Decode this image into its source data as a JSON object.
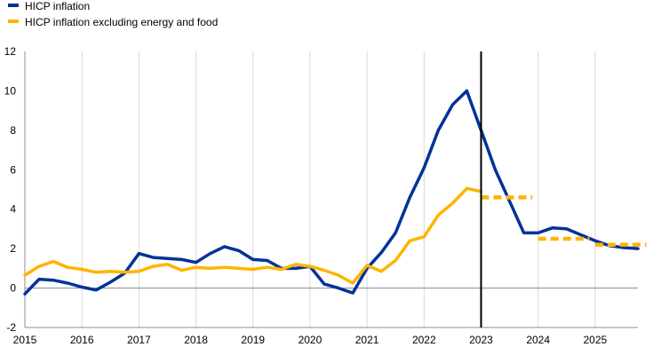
{
  "chart_data": {
    "type": "line",
    "title": "",
    "xlabel": "",
    "ylabel": "",
    "xlim": [
      2015,
      2025.75
    ],
    "ylim": [
      -2,
      12
    ],
    "x_ticks": [
      2015,
      2016,
      2017,
      2018,
      2019,
      2020,
      2021,
      2022,
      2023,
      2024,
      2025
    ],
    "y_ticks": [
      -2,
      0,
      2,
      4,
      6,
      8,
      10,
      12
    ],
    "grid": "vertical",
    "legend_position": "top-left",
    "vertical_marker_x": 2023,
    "series": [
      {
        "name": "HICP inflation",
        "color": "#003299",
        "style": "solid",
        "x": [
          2015.0,
          2015.25,
          2015.5,
          2015.75,
          2016.0,
          2016.25,
          2016.5,
          2016.75,
          2017.0,
          2017.25,
          2017.5,
          2017.75,
          2018.0,
          2018.25,
          2018.5,
          2018.75,
          2019.0,
          2019.25,
          2019.5,
          2019.75,
          2020.0,
          2020.25,
          2020.5,
          2020.75,
          2021.0,
          2021.25,
          2021.5,
          2021.75,
          2022.0,
          2022.25,
          2022.5,
          2022.75,
          2023.0,
          2023.25,
          2023.5,
          2023.75,
          2024.0,
          2024.25,
          2024.5,
          2024.75,
          2025.0,
          2025.25,
          2025.5,
          2025.75
        ],
        "values": [
          -0.3,
          0.45,
          0.4,
          0.25,
          0.05,
          -0.1,
          0.3,
          0.75,
          1.75,
          1.55,
          1.5,
          1.45,
          1.3,
          1.75,
          2.1,
          1.9,
          1.45,
          1.4,
          1.0,
          1.0,
          1.1,
          0.2,
          0.0,
          -0.25,
          1.0,
          1.8,
          2.8,
          4.6,
          6.1,
          8.0,
          9.3,
          10.0,
          8.0,
          6.0,
          4.4,
          2.8,
          2.8,
          3.05,
          3.0,
          2.7,
          2.4,
          2.15,
          2.05,
          2.0
        ]
      },
      {
        "name": "HICP inflation excluding energy and food",
        "color": "#FFB400",
        "style": "solid",
        "x": [
          2015.0,
          2015.25,
          2015.5,
          2015.75,
          2016.0,
          2016.25,
          2016.5,
          2016.75,
          2017.0,
          2017.25,
          2017.5,
          2017.75,
          2018.0,
          2018.25,
          2018.5,
          2018.75,
          2019.0,
          2019.25,
          2019.5,
          2019.75,
          2020.0,
          2020.25,
          2020.5,
          2020.75,
          2021.0,
          2021.25,
          2021.5,
          2021.75,
          2022.0,
          2022.25,
          2022.5,
          2022.75,
          2023.0
        ],
        "values": [
          0.65,
          1.1,
          1.35,
          1.05,
          0.95,
          0.8,
          0.85,
          0.8,
          0.85,
          1.1,
          1.2,
          0.9,
          1.05,
          1.0,
          1.05,
          1.0,
          0.95,
          1.05,
          0.95,
          1.2,
          1.1,
          0.9,
          0.65,
          0.25,
          1.15,
          0.85,
          1.4,
          2.4,
          2.6,
          3.7,
          4.3,
          5.05,
          4.9
        ]
      }
    ],
    "projections": [
      {
        "series": "HICP inflation excluding energy and food",
        "color": "#FFB400",
        "style": "dashed",
        "x_start": 2023.0,
        "x_end": 2023.9,
        "value": 4.6
      },
      {
        "series": "HICP inflation excluding energy and food",
        "color": "#FFB400",
        "style": "dashed",
        "x_start": 2024.0,
        "x_end": 2024.9,
        "value": 2.5
      },
      {
        "series": "HICP inflation excluding energy and food",
        "color": "#FFB400",
        "style": "dashed",
        "x_start": 2025.0,
        "x_end": 2025.9,
        "value": 2.2
      }
    ]
  }
}
